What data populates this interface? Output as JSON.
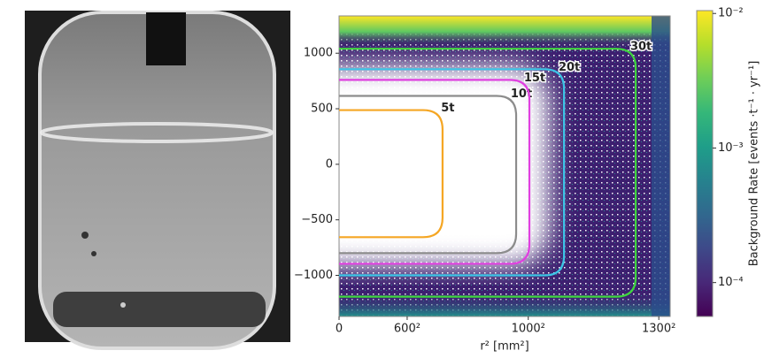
{
  "chart_data": {
    "type": "heatmap-contour",
    "x_label": "r² [mm²]",
    "colorbar_label": "Background Rate [events ·t⁻¹ · yr⁻¹]",
    "xlim": [
      0,
      1750000
    ],
    "xticks": [
      0,
      {
        "value": 360000,
        "label": "600²"
      },
      {
        "value": 1000000,
        "label": "1000²"
      },
      {
        "value": 1690000,
        "label": "1300²"
      }
    ],
    "ylim": [
      -1370,
      1336
    ],
    "yticks": [
      {
        "value": -1000,
        "label": "−1000"
      },
      {
        "value": -500,
        "label": "−500"
      },
      0,
      500,
      1000
    ],
    "colorbar_lim": [
      5.6e-05,
      0.0105
    ],
    "colorbar_log": true,
    "colormap": "viridis",
    "colorbar_ticks": [
      {
        "value": 0.0001,
        "label": "10⁻⁴"
      },
      {
        "value": 0.001,
        "label": "10⁻³"
      },
      {
        "value": 0.01,
        "label": "10⁻²"
      }
    ],
    "contours": [
      {
        "label": "5t",
        "color": "#f5a623",
        "r2_max": 547000,
        "z_min": -656,
        "z_max": 488
      },
      {
        "label": "10t",
        "color": "#8c8c8c",
        "r2_max": 936000,
        "z_min": -800,
        "z_max": 616
      },
      {
        "label": "15t",
        "color": "#e040e0",
        "r2_max": 1006000,
        "z_min": -896,
        "z_max": 760
      },
      {
        "label": "20t",
        "color": "#3cc4e6",
        "r2_max": 1189000,
        "z_min": -1000,
        "z_max": 856
      },
      {
        "label": "30t",
        "color": "#3fd63f",
        "r2_max": 1568000,
        "z_min": -1192,
        "z_max": 1040
      }
    ]
  }
}
